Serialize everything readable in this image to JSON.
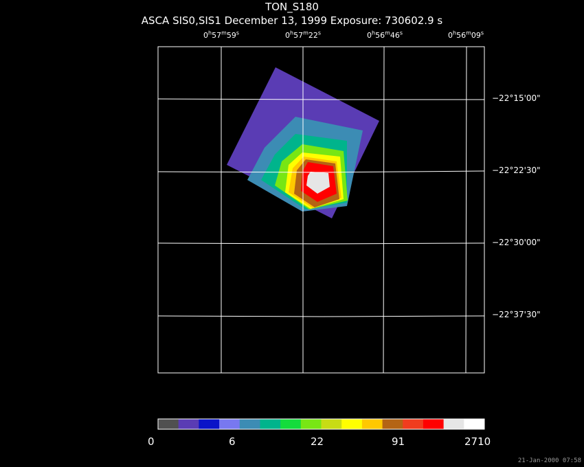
{
  "title": "TON_S180",
  "subtitle": "ASCA SIS0,SIS1 December 13, 1999 Exposure: 730602.9 s",
  "ra_labels": [
    {
      "h": "0",
      "m": "57",
      "s": "59"
    },
    {
      "h": "0",
      "m": "57",
      "s": "22"
    },
    {
      "h": "0",
      "m": "56",
      "s": "46"
    },
    {
      "h": "0",
      "m": "56",
      "s": "09"
    }
  ],
  "dec_labels": [
    "−22°15'00\"",
    "−22°22'30\"",
    "−22°30'00\"",
    "−22°37'30\""
  ],
  "colorbar": {
    "colors": [
      "#505050",
      "#5a3cb4",
      "#0a14c8",
      "#7878f0",
      "#3c8cb4",
      "#00b48c",
      "#14dc3c",
      "#78e614",
      "#c8dc14",
      "#ffff00",
      "#ffc800",
      "#b46414",
      "#f03c1e",
      "#ff0000",
      "#e6e6e6",
      "#ffffff"
    ],
    "tick_labels": [
      "0",
      "6",
      "22",
      "91",
      "2710"
    ]
  },
  "image_colors": {
    "outer": "#5a3cb4",
    "ring1": "#3c8cb4",
    "ring2": "#00b48c",
    "ring3": "#78e614",
    "ring4": "#ffff00",
    "ring5": "#ffc800",
    "ring6": "#b46414",
    "core": "#ff0000",
    "center": "#e6e6e6"
  },
  "timestamp": "21-Jan-2000 07:58"
}
